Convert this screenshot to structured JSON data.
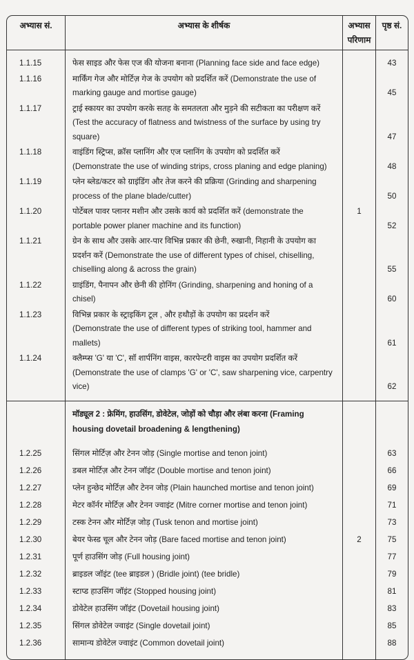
{
  "header": {
    "col_no": "अभ्यास सं.",
    "col_title": "अभ्यास के शीर्षक",
    "col_outcome_1": "अभ्यास",
    "col_outcome_2": "परिणाम",
    "col_page": "पृष्ठ सं."
  },
  "rows": [
    {
      "no": "1.1.15",
      "lines": [
        "फेस साइड और फेस एज की योजना बनाना (Planning face side and face edge)"
      ],
      "outcome": "",
      "page": "43"
    },
    {
      "no": "1.1.16",
      "lines": [
        "मार्किंग गेज और मोर्टिज़ गेज के उपयोग को प्रदर्शित करें (Demonstrate the use of",
        "marking gauge and mortise gauge)"
      ],
      "outcome": "",
      "page": "45"
    },
    {
      "no": "1.1.17",
      "lines": [
        "ट्राई स्कायर का उपयोग करके सतह के समतलता और मुड़ने की सटीकता का परीक्षण करें",
        "(Test the accuracy of flatness and twistness of the surface by using try square)"
      ],
      "outcome": "",
      "page": "47"
    },
    {
      "no": "1.1.18",
      "lines": [
        "वाइंडिंग स्ट्रिप्स, क्रॉस प्लानिंग और एज प्लानिंग के उपयोग को प्रदर्शित करें",
        "(Demonstrate the use of winding strips, cross planing and edge planing)"
      ],
      "outcome": "",
      "page": "48"
    },
    {
      "no": "1.1.19",
      "lines": [
        "प्लेन ब्लेड/कटर को ग्राइंडिंग और तेज करने की प्रक्रिया (Grinding and sharpening",
        " process of the plane blade/cutter)"
      ],
      "outcome": "",
      "page": "50"
    },
    {
      "no": "1.1.20",
      "lines": [
        "पोर्टेबल पावर प्लानर मशीन और उसके कार्य को प्रदर्शित करें (demonstrate the",
        "portable power planer machine and its function)"
      ],
      "outcome": "1",
      "page": "52"
    },
    {
      "no": "1.1.21",
      "lines": [
        "ग्रेन  के साथ और उसके आर-पार विभिन्न प्रकार की छेनी, रुखानी, निहानी के उपयोग का",
        "प्रदर्शन करें (Demonstrate the use of different types of chisel, chiselling,",
        "chiselling along & across the grain)"
      ],
      "outcome": "",
      "page": "55"
    },
    {
      "no": "1.1.22",
      "lines": [
        "ग्राइंडिंग, पैनापन और छेनी की होनिंग (Grinding, sharpening and honing of a chisel)"
      ],
      "outcome": "",
      "page": "60"
    },
    {
      "no": "1.1.23",
      "lines": [
        "विभिन्न प्रकार के स्ट्राइकिंग  टूल , और हथौड़ों के उपयोग का प्रदर्शन करें",
        "(Demonstrate the use of different types of striking tool, hammer and mallets)"
      ],
      "outcome": "",
      "page": "61"
    },
    {
      "no": "1.1.24",
      "lines": [
        "क्लैम्प्स 'G' या 'C', सॉ शार्पनिंग वाइस, कारपेन्टरी  वाइस का उपयोग प्रदर्शित करें",
        "(Demonstrate the use of clamps 'G' or 'C', saw sharpening vice, carpentry vice)"
      ],
      "outcome": "",
      "page": "62"
    }
  ],
  "module": {
    "lines": [
      "मॉड्यूल 2 : फ्रेमिंग, हाउसिंग, डोवेटेल, जोड़ों को चौड़ा और लंबा करना (Framing",
      "housing dovetail broadening & lengthening)"
    ]
  },
  "rows2": [
    {
      "no": "1.2.25",
      "lines": [
        "सिंगल मोर्टिज़ और टेनन जोड़ (Single mortise and tenon joint)"
      ],
      "outcome": "",
      "page": "63"
    },
    {
      "no": "1.2.26",
      "lines": [
        "डबल मोर्टिज़ और टेनन जॉइंट (Double mortise and tenon joint)"
      ],
      "outcome": "",
      "page": "66"
    },
    {
      "no": "1.2.27",
      "lines": [
        "प्लेन हुन्छेद मोर्टिज़ और टेनन जोड़ (Plain haunched mortise and tenon joint)"
      ],
      "outcome": "",
      "page": "69"
    },
    {
      "no": "1.2.28",
      "lines": [
        "मेटर कॉर्नर मोर्टिज़ और टेनन ज्वाइंट (Mitre corner mortise and tenon joint)"
      ],
      "outcome": "",
      "page": "71"
    },
    {
      "no": "1.2.29",
      "lines": [
        "टस्क टेनन और मोर्टिज़ जोड़ (Tusk tenon and mortise joint)"
      ],
      "outcome": "",
      "page": "73"
    },
    {
      "no": "1.2.30",
      "lines": [
        "बेयर फेस्ड चूल और टेनन जोड़ (Bare faced mortise and tenon joint)"
      ],
      "outcome": "2",
      "page": "75"
    },
    {
      "no": "1.2.31",
      "lines": [
        "पूर्ण हाउसिंग जोड़ (Full housing joint)"
      ],
      "outcome": "",
      "page": "77"
    },
    {
      "no": "1.2.32",
      "lines": [
        "ब्राइडल जॉइंट (tee ब्राइडल ) (Bridle joint) (tee bridle)"
      ],
      "outcome": "",
      "page": "79"
    },
    {
      "no": "1.2.33",
      "lines": [
        "स्टाप्ड हाउसिंग जॉइंट (Stopped housing joint)"
      ],
      "outcome": "",
      "page": "81"
    },
    {
      "no": "1.2.34",
      "lines": [
        "डोवेटेल हाउसिंग जॉइंट (Dovetail housing joint)"
      ],
      "outcome": "",
      "page": "83"
    },
    {
      "no": "1.2.35",
      "lines": [
        "सिंगल डोवेटेल ज्वाइंट (Single dovetail joint)"
      ],
      "outcome": "",
      "page": "85"
    },
    {
      "no": "1.2.36",
      "lines": [
        "सामान्य डोवेटेल ज्वाइंट (Common dovetail joint)"
      ],
      "outcome": "",
      "page": "88"
    }
  ]
}
